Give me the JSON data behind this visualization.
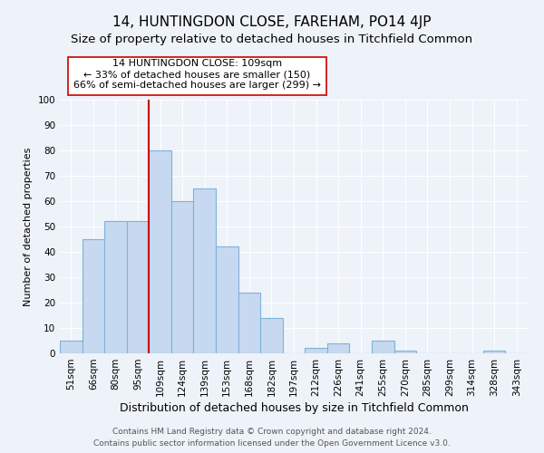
{
  "title": "14, HUNTINGDON CLOSE, FAREHAM, PO14 4JP",
  "subtitle": "Size of property relative to detached houses in Titchfield Common",
  "xlabel": "Distribution of detached houses by size in Titchfield Common",
  "ylabel": "Number of detached properties",
  "bar_labels": [
    "51sqm",
    "66sqm",
    "80sqm",
    "95sqm",
    "109sqm",
    "124sqm",
    "139sqm",
    "153sqm",
    "168sqm",
    "182sqm",
    "197sqm",
    "212sqm",
    "226sqm",
    "241sqm",
    "255sqm",
    "270sqm",
    "285sqm",
    "299sqm",
    "314sqm",
    "328sqm",
    "343sqm"
  ],
  "bar_values": [
    5,
    45,
    52,
    52,
    80,
    60,
    65,
    42,
    24,
    14,
    0,
    2,
    4,
    0,
    5,
    1,
    0,
    0,
    0,
    1,
    0
  ],
  "bar_color": "#c6d9f0",
  "bar_edge_color": "#7eb3d8",
  "marker_index": 4,
  "marker_color": "#cc0000",
  "ylim": [
    0,
    100
  ],
  "yticks": [
    0,
    10,
    20,
    30,
    40,
    50,
    60,
    70,
    80,
    90,
    100
  ],
  "annotation_title": "14 HUNTINGDON CLOSE: 109sqm",
  "annotation_line1": "← 33% of detached houses are smaller (150)",
  "annotation_line2": "66% of semi-detached houses are larger (299) →",
  "annotation_box_color": "#ffffff",
  "annotation_box_edge": "#cc0000",
  "footer_line1": "Contains HM Land Registry data © Crown copyright and database right 2024.",
  "footer_line2": "Contains public sector information licensed under the Open Government Licence v3.0.",
  "background_color": "#eef2f9",
  "grid_color": "#ffffff",
  "title_fontsize": 11,
  "subtitle_fontsize": 9.5,
  "xlabel_fontsize": 9,
  "ylabel_fontsize": 8,
  "tick_fontsize": 7.5,
  "annotation_fontsize": 8,
  "footer_fontsize": 6.5
}
